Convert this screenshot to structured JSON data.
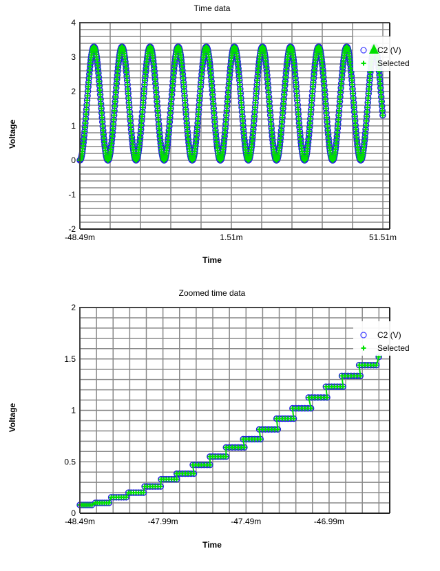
{
  "colors": {
    "series": "#2222dd",
    "selected": "#00e000",
    "grid": "#888888",
    "axis": "#444444"
  },
  "chart_data": [
    {
      "type": "scatter",
      "title": "Time data",
      "xlabel": "Time",
      "ylabel": "Voltage",
      "xlim": [
        -48.49,
        53.78
      ],
      "ylim": [
        -2,
        4
      ],
      "x_unit": "ms",
      "x_ticks": [
        {
          "value": -48.49,
          "label": "-48.49m"
        },
        {
          "value": 1.51,
          "label": "1.51m"
        },
        {
          "value": 51.51,
          "label": "51.51m"
        }
      ],
      "y_ticks": [
        {
          "value": 4,
          "label": "4"
        },
        {
          "value": 3,
          "label": "3"
        },
        {
          "value": 2,
          "label": "2"
        },
        {
          "value": 1,
          "label": "1"
        },
        {
          "value": 0,
          "label": "0"
        },
        {
          "value": -1,
          "label": "-1"
        },
        {
          "value": -2,
          "label": "-2"
        }
      ],
      "grid": true,
      "legend": {
        "placement": "top-right",
        "entries": [
          {
            "name": "C2 (V)",
            "marker": "circle"
          },
          {
            "name": "Selected",
            "marker": "plus"
          }
        ]
      },
      "signal": {
        "shape": "sine",
        "min": 0,
        "max": 3.3,
        "period": 9.27,
        "start_time": -48.49,
        "end_time": 51.51,
        "starts_at": "minimum"
      }
    },
    {
      "type": "scatter",
      "title": "Zoomed time data",
      "xlabel": "Time",
      "ylabel": "Voltage",
      "xlim": [
        -48.49,
        -46.625
      ],
      "ylim": [
        0,
        2
      ],
      "x_unit": "ms",
      "x_ticks": [
        {
          "value": -48.49,
          "label": "-48.49m"
        },
        {
          "value": -47.99,
          "label": "-47.99m"
        },
        {
          "value": -47.49,
          "label": "-47.49m"
        },
        {
          "value": -46.99,
          "label": "-46.99m"
        }
      ],
      "y_ticks": [
        {
          "value": 2,
          "label": "2"
        },
        {
          "value": 1.5,
          "label": "1.5"
        },
        {
          "value": 1,
          "label": "1"
        },
        {
          "value": 0.5,
          "label": "0.5"
        },
        {
          "value": 0,
          "label": "0"
        }
      ],
      "grid": true,
      "legend": {
        "placement": "top-right",
        "entries": [
          {
            "name": "C2 (V)",
            "marker": "circle"
          },
          {
            "name": "Selected",
            "marker": "plus"
          }
        ]
      },
      "steps": [
        [
          -48.49,
          -48.418,
          0.08
        ],
        [
          -48.397,
          -48.315,
          0.1
        ],
        [
          -48.301,
          -48.211,
          0.155
        ],
        [
          -48.197,
          -48.107,
          0.2
        ],
        [
          -48.1,
          -48.004,
          0.26
        ],
        [
          -48.001,
          -47.907,
          0.33
        ],
        [
          -47.907,
          -47.804,
          0.385
        ],
        [
          -47.81,
          -47.707,
          0.47
        ],
        [
          -47.707,
          -47.61,
          0.55
        ],
        [
          -47.61,
          -47.5,
          0.64
        ],
        [
          -47.507,
          -47.403,
          0.72
        ],
        [
          -47.41,
          -47.299,
          0.815
        ],
        [
          -47.306,
          -47.203,
          0.92
        ],
        [
          -47.21,
          -47.099,
          1.02
        ],
        [
          -47.113,
          -47.002,
          1.125
        ],
        [
          -47.009,
          -46.906,
          1.23
        ],
        [
          -46.913,
          -46.802,
          1.335
        ],
        [
          -46.809,
          -46.705,
          1.44
        ]
      ],
      "end_point": [
        -46.691,
        1.52
      ]
    }
  ]
}
